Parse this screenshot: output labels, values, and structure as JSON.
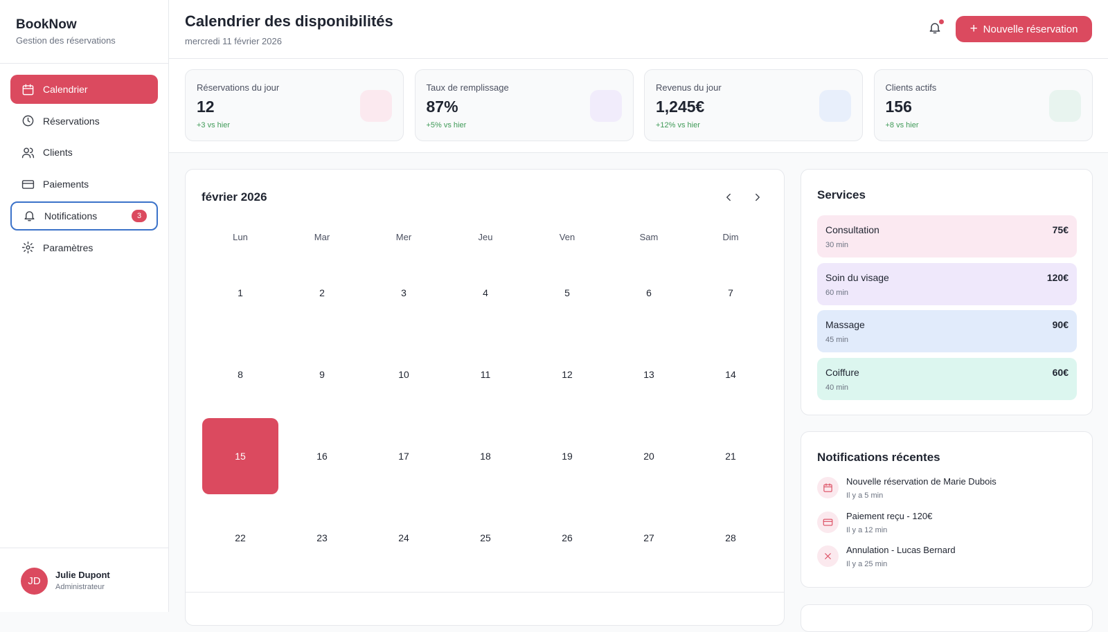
{
  "sidebar": {
    "brand": "BookNow",
    "subtitle": "Gestion des réservations",
    "nav": [
      {
        "label": "Calendrier"
      },
      {
        "label": "Réservations"
      },
      {
        "label": "Clients"
      },
      {
        "label": "Paiements"
      },
      {
        "label": "Notifications",
        "badge": "3"
      },
      {
        "label": "Paramètres"
      }
    ],
    "user": {
      "initials": "JD",
      "name": "Julie Dupont",
      "role": "Administrateur"
    }
  },
  "header": {
    "title": "Calendrier des disponibilités",
    "date": "mercredi 11 février 2026",
    "button": "Nouvelle réservation"
  },
  "stats": [
    {
      "label": "Réservations du jour",
      "value": "12",
      "change": "+3 vs hier"
    },
    {
      "label": "Taux de remplissage",
      "value": "87%",
      "change": "+5% vs hier"
    },
    {
      "label": "Revenus du jour",
      "value": "1,245€",
      "change": "+12% vs hier"
    },
    {
      "label": "Clients actifs",
      "value": "156",
      "change": "+8 vs hier"
    }
  ],
  "calendar": {
    "month": "février 2026",
    "weekdays": [
      "Lun",
      "Mar",
      "Mer",
      "Jeu",
      "Ven",
      "Sam",
      "Dim"
    ],
    "days": [
      1,
      2,
      3,
      4,
      5,
      6,
      7,
      8,
      9,
      10,
      11,
      12,
      13,
      14,
      15,
      16,
      17,
      18,
      19,
      20,
      21,
      22,
      23,
      24,
      25,
      26,
      27,
      28
    ],
    "selected": 15
  },
  "services": {
    "title": "Services",
    "items": [
      {
        "name": "Consultation",
        "duration": "30 min",
        "price": "75€"
      },
      {
        "name": "Soin du visage",
        "duration": "60 min",
        "price": "120€"
      },
      {
        "name": "Massage",
        "duration": "45 min",
        "price": "90€"
      },
      {
        "name": "Coiffure",
        "duration": "40 min",
        "price": "60€"
      }
    ]
  },
  "notifications": {
    "title": "Notifications récentes",
    "items": [
      {
        "text": "Nouvelle réservation de Marie Dubois",
        "time": "Il y a 5 min"
      },
      {
        "text": "Paiement reçu - 120€",
        "time": "Il y a 12 min"
      },
      {
        "text": "Annulation - Lucas Bernard",
        "time": "Il y a 25 min"
      }
    ]
  }
}
